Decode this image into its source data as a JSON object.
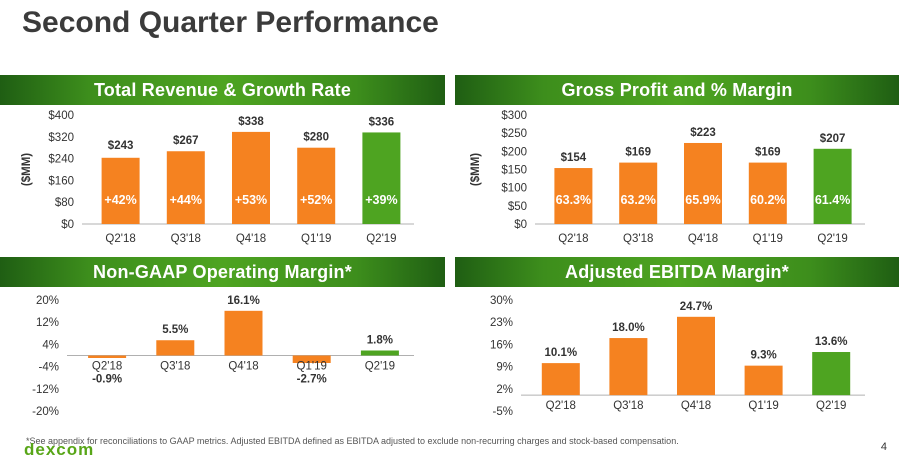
{
  "page": {
    "title": "Second Quarter Performance",
    "page_number": "4",
    "logo": "dexcom",
    "footnote": "*See appendix for reconciliations to GAAP metrics. Adjusted EBITDA defined as EBITDA adjusted to exclude non-recurring charges and stock-based compensation."
  },
  "colors": {
    "bar": "#f58220",
    "highlight": "#4ea421",
    "text": "#333333",
    "baseline": "#b0b0b0"
  },
  "chart_data": [
    {
      "id": "revenue",
      "type": "bar",
      "title": "Total Revenue & Growth Rate",
      "ylabel": "($MM)",
      "categories": [
        "Q2'18",
        "Q3'18",
        "Q4'18",
        "Q1'19",
        "Q2'19"
      ],
      "values": [
        243,
        267,
        338,
        280,
        336
      ],
      "value_labels": [
        "$243",
        "$267",
        "$338",
        "$280",
        "$336"
      ],
      "inner_labels": [
        "+42%",
        "+44%",
        "+53%",
        "+52%",
        "+39%"
      ],
      "yticks": [
        0,
        80,
        160,
        240,
        320,
        400
      ],
      "ytick_labels": [
        "$0",
        "$80",
        "$160",
        "$240",
        "$320",
        "$400"
      ],
      "ylim": [
        0,
        400
      ],
      "highlight_index": 4
    },
    {
      "id": "gross-profit",
      "type": "bar",
      "title": "Gross Profit and % Margin",
      "ylabel": "($MM)",
      "categories": [
        "Q2'18",
        "Q3'18",
        "Q4'18",
        "Q1'19",
        "Q2'19"
      ],
      "values": [
        154,
        169,
        223,
        169,
        207
      ],
      "value_labels": [
        "$154",
        "$169",
        "$223",
        "$169",
        "$207"
      ],
      "inner_labels": [
        "63.3%",
        "63.2%",
        "65.9%",
        "60.2%",
        "61.4%"
      ],
      "yticks": [
        0,
        50,
        100,
        150,
        200,
        250,
        300
      ],
      "ytick_labels": [
        "$0",
        "$50",
        "$100",
        "$150",
        "$200",
        "$250",
        "$300"
      ],
      "ylim": [
        0,
        300
      ],
      "highlight_index": 4
    },
    {
      "id": "op-margin",
      "type": "bar",
      "title": "Non-GAAP Operating Margin*",
      "ylabel": "",
      "categories": [
        "Q2'18",
        "Q3'18",
        "Q4'18",
        "Q1'19",
        "Q2'19"
      ],
      "values": [
        -0.9,
        5.5,
        16.1,
        -2.7,
        1.8
      ],
      "value_labels": [
        "-0.9%",
        "5.5%",
        "16.1%",
        "-2.7%",
        "1.8%"
      ],
      "inner_labels": [],
      "yticks": [
        -20,
        -12,
        -4,
        4,
        12,
        20
      ],
      "ytick_labels": [
        "-20%",
        "-12%",
        "-4%",
        "4%",
        "12%",
        "20%"
      ],
      "ylim": [
        -20,
        20
      ],
      "highlight_index": 4
    },
    {
      "id": "ebitda-margin",
      "type": "bar",
      "title": "Adjusted EBITDA Margin*",
      "ylabel": "",
      "categories": [
        "Q2'18",
        "Q3'18",
        "Q4'18",
        "Q1'19",
        "Q2'19"
      ],
      "values": [
        10.1,
        18.0,
        24.7,
        9.3,
        13.6
      ],
      "value_labels": [
        "10.1%",
        "18.0%",
        "24.7%",
        "9.3%",
        "13.6%"
      ],
      "inner_labels": [],
      "yticks": [
        -5,
        2,
        9,
        16,
        23,
        30
      ],
      "ytick_labels": [
        "-5%",
        "2%",
        "9%",
        "16%",
        "23%",
        "30%"
      ],
      "ylim": [
        -5,
        30
      ],
      "highlight_index": 4
    }
  ]
}
